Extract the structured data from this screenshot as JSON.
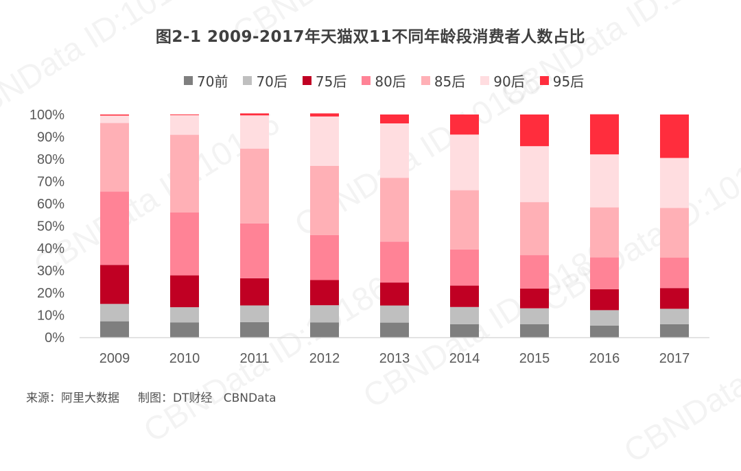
{
  "title": "图2-1  2009-2017年天猫双11不同年龄段消费者人数占比",
  "watermark_text": "CBNData ID:10186",
  "source": {
    "label": "来源：阿里大数据",
    "made_by": "制图：DT财经   CBNData"
  },
  "chart_data": {
    "type": "stacked-bar",
    "categories": [
      "2009",
      "2010",
      "2011",
      "2012",
      "2013",
      "2014",
      "2015",
      "2016",
      "2017"
    ],
    "series": [
      {
        "name": "70前",
        "color": "#7f7f7f",
        "values": [
          7.2,
          6.7,
          6.8,
          6.7,
          6.6,
          5.9,
          5.9,
          5.3,
          5.9
        ]
      },
      {
        "name": "70后",
        "color": "#bfbfbf",
        "values": [
          7.8,
          6.8,
          7.5,
          7.7,
          7.7,
          7.7,
          7.1,
          6.9,
          6.9
        ]
      },
      {
        "name": "75后",
        "color": "#c00023",
        "values": [
          17.5,
          14.3,
          12.2,
          11.3,
          10.3,
          9.6,
          8.9,
          9.4,
          9.3
        ]
      },
      {
        "name": "80后",
        "color": "#ff8396",
        "values": [
          32.9,
          28.2,
          24.6,
          20.2,
          18.4,
          16.2,
          15.0,
          14.3,
          13.7
        ]
      },
      {
        "name": "85后",
        "color": "#ffb0b6",
        "values": [
          30.8,
          34.9,
          33.6,
          31.1,
          28.6,
          26.6,
          23.8,
          22.4,
          22.3
        ]
      },
      {
        "name": "90后",
        "color": "#ffdde0",
        "values": [
          3.3,
          8.8,
          14.9,
          22.1,
          24.4,
          25.0,
          25.1,
          23.8,
          22.4
        ]
      },
      {
        "name": "95后",
        "color": "#ff2d3d",
        "values": [
          0.5,
          0.3,
          0.9,
          1.4,
          4.0,
          9.0,
          14.2,
          18.0,
          19.5
        ]
      }
    ],
    "y_ticks": [
      "0%",
      "10%",
      "20%",
      "30%",
      "40%",
      "50%",
      "60%",
      "70%",
      "80%",
      "90%",
      "100%"
    ],
    "ylim": [
      0,
      100
    ],
    "grid": false,
    "legend_position": "top"
  }
}
